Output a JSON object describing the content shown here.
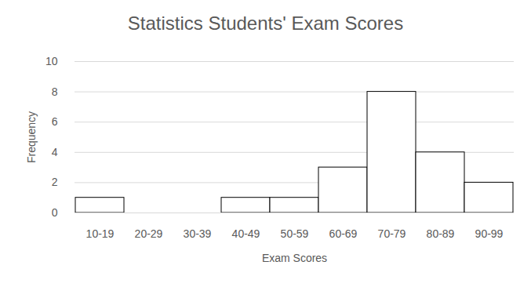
{
  "chart_data": {
    "type": "bar",
    "title": "Statistics Students' Exam Scores",
    "x_label": "Exam Scores",
    "y_label": "Frequency",
    "categories": [
      "10-19",
      "20-29",
      "30-39",
      "40-49",
      "50-59",
      "60-69",
      "70-79",
      "80-89",
      "90-99"
    ],
    "values": [
      1,
      0,
      0,
      1,
      1,
      3,
      8,
      4,
      2
    ],
    "color": "#ffffff",
    "ylim": [
      0,
      10
    ],
    "yticks": [
      0,
      2,
      4,
      6,
      8,
      10
    ],
    "grid": true
  }
}
